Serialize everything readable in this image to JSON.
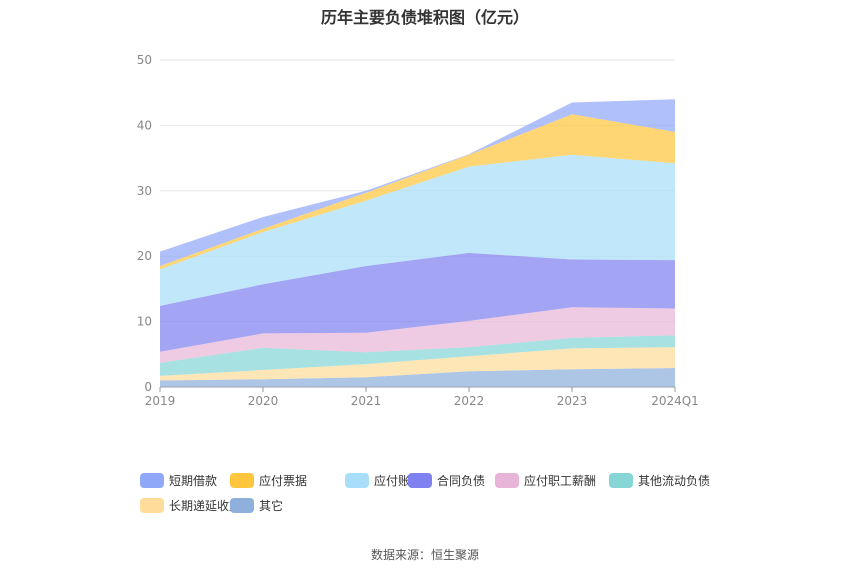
{
  "chart_data": {
    "type": "area",
    "stacked": true,
    "title": "历年主要负债堆积图（亿元）",
    "categories": [
      "2019",
      "2020",
      "2021",
      "2022",
      "2023",
      "2024Q1"
    ],
    "ylim": [
      0,
      50
    ],
    "yticks": [
      0,
      10,
      20,
      30,
      40,
      50
    ],
    "grid": true,
    "legend_position": "bottom",
    "series": [
      {
        "name": "其它",
        "color": "#8fb0dc",
        "values": [
          1.0,
          1.2,
          1.5,
          2.4,
          2.7,
          2.9
        ]
      },
      {
        "name": "长期递延收益",
        "color": "#ffdc9a",
        "values": [
          0.7,
          1.4,
          2.0,
          2.3,
          3.2,
          3.2
        ]
      },
      {
        "name": "其他流动负债",
        "color": "#86d6d6",
        "values": [
          2.0,
          3.4,
          1.8,
          1.4,
          1.6,
          1.8
        ]
      },
      {
        "name": "应付职工薪酬",
        "color": "#e8b5d8",
        "values": [
          1.7,
          2.2,
          3.0,
          4.0,
          4.7,
          4.1
        ]
      },
      {
        "name": "合同负债",
        "color": "#7f81f0",
        "values": [
          7.0,
          7.5,
          10.2,
          10.4,
          7.3,
          7.4
        ]
      },
      {
        "name": "应付账款",
        "color": "#a9defa",
        "values": [
          5.6,
          8.0,
          10.0,
          13.2,
          16.0,
          14.8
        ]
      },
      {
        "name": "应付票据",
        "color": "#ffc63d",
        "values": [
          0.5,
          0.5,
          1.2,
          1.8,
          6.2,
          4.8
        ]
      },
      {
        "name": "短期借款",
        "color": "#90a8f8",
        "values": [
          2.2,
          1.8,
          0.3,
          0.1,
          1.8,
          5.0
        ]
      }
    ]
  },
  "legend_order": [
    "短期借款",
    "应付票据",
    "应付账款",
    "合同负债",
    "应付职工薪酬",
    "其他流动负债",
    "长期递延收益",
    "其它"
  ],
  "source_text": "数据来源：恒生聚源"
}
